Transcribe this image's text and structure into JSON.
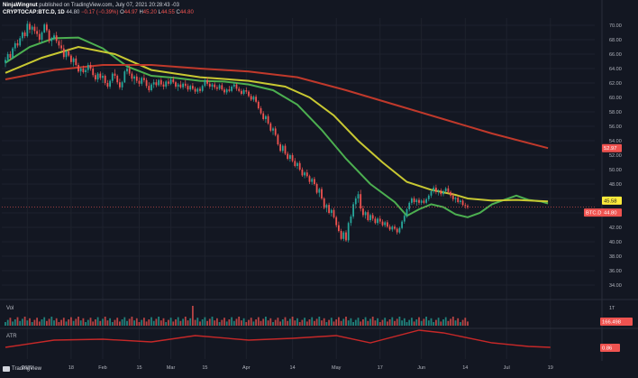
{
  "header": {
    "publisher_name": "NinjaWingnut",
    "publisher_suffix": "published on TradingView.com, July 07, 2021 20:28:43 -03",
    "symbol": "CRYPTOCAP:BTC.D, 1D",
    "last": "44.80",
    "change": "−0.17 (−0.39%)",
    "ohlc": {
      "o_label": "O",
      "o": "44.97",
      "h_label": "H",
      "h": "45.20",
      "l_label": "L",
      "l": "44.55",
      "c_label": "C",
      "c": "44.80"
    }
  },
  "footer": {
    "brand": "TradingView"
  },
  "colors": {
    "background": "#131722",
    "grid": "#1e222d",
    "up": "#26a69a",
    "down": "#ef5350",
    "ma_fast": "#4caf50",
    "ma_mid": "#c8c832",
    "ma_slow": "#c0392b",
    "atr": "#c62828",
    "price_line": "#ef5350"
  },
  "chart_data": {
    "type": "candlestick",
    "y_ticks": [
      "70.00",
      "68.00",
      "66.00",
      "64.00",
      "62.00",
      "60.00",
      "58.00",
      "56.00",
      "54.00",
      "52.00",
      "50.00",
      "48.00",
      "46.00",
      "44.00",
      "42.00",
      "40.00",
      "38.00",
      "36.00",
      "34.00"
    ],
    "x_ticks": [
      "2021",
      "18",
      "Feb",
      "15",
      "Mar",
      "15",
      "Apr",
      "14",
      "May",
      "17",
      "Jun",
      "14",
      "Jul",
      "19"
    ],
    "price_labels": [
      {
        "label": "52.97",
        "value": 52.97,
        "color": "#ef5350"
      },
      {
        "label": "45.58",
        "value": 45.58,
        "color": "#ffeb3b"
      },
      {
        "label": "BTC.D",
        "value": 44.8,
        "color": "#ef5350"
      },
      {
        "label": "44.80",
        "value": 44.8,
        "color": "#ef5350"
      }
    ],
    "last_price": 44.8,
    "ylim": [
      32.5,
      71
    ],
    "moving_averages": [
      {
        "period": 20,
        "color": "#4caf50",
        "points": [
          [
            0,
            64.8
          ],
          [
            10,
            67
          ],
          [
            20,
            68.2
          ],
          [
            30,
            68.3
          ],
          [
            40,
            66.8
          ],
          [
            50,
            64.3
          ],
          [
            60,
            63
          ],
          [
            70,
            62.7
          ],
          [
            80,
            62.3
          ],
          [
            90,
            62.2
          ],
          [
            100,
            61.8
          ],
          [
            110,
            61
          ],
          [
            120,
            59
          ],
          [
            130,
            55.5
          ],
          [
            140,
            51.5
          ],
          [
            150,
            48
          ],
          [
            160,
            45.5
          ],
          [
            165,
            43.6
          ],
          [
            170,
            44.5
          ],
          [
            175,
            45.2
          ],
          [
            180,
            44.8
          ],
          [
            185,
            43.8
          ],
          [
            190,
            43.4
          ],
          [
            195,
            44
          ],
          [
            200,
            45.2
          ],
          [
            205,
            45.8
          ],
          [
            210,
            46.4
          ],
          [
            215,
            45.8
          ],
          [
            220,
            45.6
          ],
          [
            223,
            45.3
          ]
        ]
      },
      {
        "period": 50,
        "color": "#c8c832",
        "points": [
          [
            0,
            63.4
          ],
          [
            15,
            65.5
          ],
          [
            30,
            67
          ],
          [
            45,
            66
          ],
          [
            60,
            63.8
          ],
          [
            80,
            62.8
          ],
          [
            100,
            62.3
          ],
          [
            115,
            61.5
          ],
          [
            125,
            60
          ],
          [
            135,
            57.5
          ],
          [
            145,
            54
          ],
          [
            155,
            51
          ],
          [
            165,
            48.3
          ],
          [
            175,
            47.2
          ],
          [
            185,
            46.5
          ],
          [
            190,
            46
          ],
          [
            200,
            45.7
          ],
          [
            210,
            45.8
          ],
          [
            223,
            45.6
          ]
        ]
      },
      {
        "period": 200,
        "color": "#c0392b",
        "points": [
          [
            0,
            62.5
          ],
          [
            20,
            63.8
          ],
          [
            40,
            64.5
          ],
          [
            60,
            64.5
          ],
          [
            80,
            64
          ],
          [
            100,
            63.6
          ],
          [
            120,
            62.8
          ],
          [
            140,
            61
          ],
          [
            160,
            59
          ],
          [
            180,
            57
          ],
          [
            200,
            55
          ],
          [
            223,
            52.97
          ]
        ]
      }
    ],
    "candles": [
      [
        64.8,
        65.6,
        64.2,
        65.2
      ],
      [
        65.2,
        66.3,
        64.9,
        66
      ],
      [
        66,
        66.4,
        65.2,
        65.5
      ],
      [
        65.5,
        67,
        65.3,
        66.8
      ],
      [
        66.8,
        67.8,
        66.4,
        67.5
      ],
      [
        67.5,
        68,
        66.9,
        67.2
      ],
      [
        67.2,
        68.5,
        67,
        68.2
      ],
      [
        68.2,
        69.2,
        67.8,
        69
      ],
      [
        69,
        69.3,
        68.2,
        68.5
      ],
      [
        68.5,
        70.6,
        68.3,
        70.2
      ],
      [
        70.2,
        70.5,
        68.9,
        69.4
      ],
      [
        69.4,
        70,
        68.7,
        69.8
      ],
      [
        69.8,
        70.2,
        68.8,
        69.2
      ],
      [
        69.2,
        69.8,
        68.4,
        68.8
      ],
      [
        68.8,
        69.4,
        67.6,
        68
      ],
      [
        68,
        69.2,
        67.5,
        69
      ],
      [
        69,
        70.3,
        68.9,
        70.1
      ],
      [
        70.1,
        70.4,
        69,
        69.3
      ],
      [
        69.3,
        69.5,
        67.5,
        67.8
      ],
      [
        67.8,
        68.4,
        67.1,
        68.2
      ],
      [
        68.2,
        68.9,
        67.9,
        68.6
      ],
      [
        68.6,
        69.1,
        67.5,
        67.8
      ],
      [
        67.8,
        68,
        66.8,
        67.2
      ],
      [
        67.2,
        68,
        66.5,
        66.8
      ],
      [
        66.8,
        67.3,
        65.3,
        65.6
      ],
      [
        65.6,
        66.6,
        65.2,
        66.4
      ],
      [
        66.4,
        66.8,
        65.6,
        65.8
      ],
      [
        65.8,
        66,
        64.6,
        64.9
      ],
      [
        64.9,
        65.6,
        64.3,
        65.4
      ],
      [
        65.4,
        65.8,
        64.3,
        64.5
      ],
      [
        64.5,
        64.8,
        63.4,
        63.6
      ],
      [
        63.6,
        64.2,
        63,
        64
      ],
      [
        64,
        64.4,
        63.3,
        63.5
      ],
      [
        63.5,
        64.1,
        62.8,
        63.8
      ],
      [
        63.8,
        64.8,
        63.4,
        64.5
      ],
      [
        64.5,
        64.9,
        63.7,
        64
      ],
      [
        64,
        64.3,
        62.8,
        63.1
      ],
      [
        63.1,
        63.4,
        62.2,
        62.5
      ],
      [
        62.5,
        63.5,
        62.1,
        63.3
      ],
      [
        63.3,
        63.6,
        62.4,
        62.7
      ],
      [
        62.7,
        63.4,
        62,
        63
      ],
      [
        63,
        63.2,
        61.7,
        62
      ],
      [
        62,
        62.4,
        61.2,
        61.5
      ],
      [
        61.5,
        62.5,
        61.2,
        62.3
      ],
      [
        62.3,
        63.5,
        62,
        63.3
      ],
      [
        63.3,
        63.9,
        62.6,
        63
      ],
      [
        63,
        63.2,
        61.8,
        62.1
      ],
      [
        62.1,
        62.6,
        61.1,
        61.4
      ],
      [
        61.4,
        62.3,
        61,
        62.1
      ],
      [
        62.1,
        63.8,
        62,
        63.6
      ],
      [
        63.6,
        64.5,
        63.2,
        64
      ],
      [
        64,
        64.4,
        63,
        63.3
      ],
      [
        63.3,
        63.6,
        62.2,
        62.6
      ],
      [
        62.6,
        63.1,
        61.8,
        62.9
      ],
      [
        62.9,
        63.3,
        62,
        62.3
      ],
      [
        62.3,
        62.8,
        61.5,
        61.9
      ],
      [
        61.9,
        62.9,
        61.6,
        62.7
      ],
      [
        62.7,
        63.2,
        62.1,
        62.4
      ],
      [
        62.4,
        62.7,
        61.3,
        61.6
      ],
      [
        61.6,
        62.1,
        60.7,
        61
      ],
      [
        61,
        62,
        60.8,
        61.8
      ],
      [
        61.8,
        62.5,
        61.3,
        62.1
      ],
      [
        62.1,
        62.5,
        61.4,
        61.7
      ],
      [
        61.7,
        62.6,
        61.5,
        62.4
      ],
      [
        62.4,
        62.7,
        61.5,
        61.8
      ],
      [
        61.8,
        62.2,
        61.1,
        61.5
      ],
      [
        61.5,
        62.4,
        61.2,
        62.2
      ],
      [
        62.2,
        62.6,
        61.6,
        61.9
      ],
      [
        61.9,
        62.8,
        61.7,
        62.5
      ],
      [
        62.5,
        62.9,
        61.9,
        62.1
      ],
      [
        62.1,
        62.3,
        61.2,
        61.5
      ],
      [
        61.5,
        62,
        60.9,
        61.8
      ],
      [
        61.8,
        62.3,
        61.2,
        61.4
      ],
      [
        61.4,
        62.1,
        61.1,
        61.9
      ],
      [
        61.9,
        62.4,
        61.3,
        61.6
      ],
      [
        61.6,
        61.9,
        60.8,
        61.1
      ],
      [
        61.1,
        61.8,
        60.8,
        61.6
      ],
      [
        61.6,
        62,
        61,
        61.2
      ],
      [
        61.2,
        61.5,
        60.5,
        60.8
      ],
      [
        60.8,
        61.4,
        60.5,
        61.2
      ],
      [
        61.2,
        61.5,
        60.6,
        60.9
      ],
      [
        60.9,
        61.8,
        60.7,
        61.6
      ],
      [
        61.6,
        62.6,
        61.4,
        62.4
      ],
      [
        62.4,
        62.8,
        61.6,
        61.9
      ],
      [
        61.9,
        62.2,
        61.2,
        61.5
      ],
      [
        61.5,
        62,
        61,
        61.8
      ],
      [
        61.8,
        62.1,
        61.1,
        61.4
      ],
      [
        61.4,
        61.7,
        60.9,
        61.2
      ],
      [
        61.2,
        61.9,
        61,
        61.7
      ],
      [
        61.7,
        62,
        60.9,
        61.1
      ],
      [
        61.1,
        61.4,
        60.4,
        60.7
      ],
      [
        60.7,
        61.3,
        60.4,
        61.1
      ],
      [
        61.1,
        61.6,
        60.7,
        60.9
      ],
      [
        60.9,
        61.7,
        60.7,
        61.5
      ],
      [
        61.5,
        62.1,
        61.2,
        61.8
      ],
      [
        61.8,
        62,
        60.9,
        61.2
      ],
      [
        61.2,
        61.5,
        60.7,
        60.9
      ],
      [
        60.9,
        61.2,
        60.3,
        60.5
      ],
      [
        60.5,
        61.2,
        60.3,
        61
      ],
      [
        61,
        61.4,
        60.5,
        60.8
      ],
      [
        60.8,
        61,
        60,
        60.2
      ],
      [
        60.2,
        60.5,
        59.5,
        59.7
      ],
      [
        59.7,
        60.3,
        59.4,
        60.1
      ],
      [
        60.1,
        60.4,
        59.2,
        59.4
      ],
      [
        59.4,
        59.6,
        58.3,
        58.5
      ],
      [
        58.5,
        58.8,
        57.6,
        57.8
      ],
      [
        57.8,
        58.1,
        56.8,
        57
      ],
      [
        57,
        57.6,
        56.5,
        57.4
      ],
      [
        57.4,
        57.7,
        56.2,
        56.4
      ],
      [
        56.4,
        56.6,
        55.2,
        55.4
      ],
      [
        55.4,
        55.9,
        54.8,
        55.7
      ],
      [
        55.7,
        56,
        54.6,
        54.8
      ],
      [
        54.8,
        55,
        53.3,
        53.5
      ],
      [
        53.5,
        53.8,
        52.4,
        52.6
      ],
      [
        52.6,
        53.5,
        52.3,
        53.3
      ],
      [
        53.3,
        53.6,
        52,
        52.2
      ],
      [
        52.2,
        52.5,
        51.3,
        51.5
      ],
      [
        51.5,
        52.2,
        51.1,
        52
      ],
      [
        52,
        52.3,
        51,
        51.2
      ],
      [
        51.2,
        51.6,
        50.3,
        50.5
      ],
      [
        50.5,
        51.1,
        50.1,
        50.9
      ],
      [
        50.9,
        51.2,
        49.8,
        50
      ],
      [
        50,
        50.3,
        49,
        49.2
      ],
      [
        49.2,
        49.8,
        48.8,
        49.6
      ],
      [
        49.6,
        50,
        48.9,
        49.1
      ],
      [
        49.1,
        49.3,
        48,
        48.3
      ],
      [
        48.3,
        48.9,
        47.9,
        48.7
      ],
      [
        48.7,
        49,
        47.8,
        48
      ],
      [
        48,
        48.2,
        46.6,
        46.8
      ],
      [
        46.8,
        47.5,
        46.2,
        47.3
      ],
      [
        47.3,
        47.6,
        45.8,
        46
      ],
      [
        46,
        46.2,
        44.5,
        44.7
      ],
      [
        44.7,
        45.3,
        44.1,
        45.1
      ],
      [
        45.1,
        45.4,
        43.8,
        44
      ],
      [
        44,
        44.6,
        43.5,
        44.4
      ],
      [
        44.4,
        44.7,
        43.2,
        43.4
      ],
      [
        43.4,
        43.6,
        42,
        42.3
      ],
      [
        42.3,
        42.8,
        41.3,
        41.5
      ],
      [
        41.5,
        41.8,
        40.2,
        40.4
      ],
      [
        40.4,
        41.5,
        40.1,
        41.3
      ],
      [
        41.3,
        41.6,
        40,
        40.2
      ],
      [
        40.2,
        42.8,
        39.9,
        42.6
      ],
      [
        42.6,
        43.8,
        42.2,
        43.5
      ],
      [
        43.5,
        45.5,
        43.2,
        45.2
      ],
      [
        45.2,
        46.3,
        44.6,
        46
      ],
      [
        46,
        47,
        45.4,
        46.6
      ],
      [
        46.6,
        47.2,
        44.2,
        44.6
      ],
      [
        44.6,
        45,
        43.4,
        43.7
      ],
      [
        43.7,
        44.3,
        43.2,
        44.1
      ],
      [
        44.1,
        44.4,
        42.8,
        43
      ],
      [
        43,
        43.9,
        42.7,
        43.7
      ],
      [
        43.7,
        44,
        42.9,
        43.2
      ],
      [
        43.2,
        43.5,
        42.4,
        42.6
      ],
      [
        42.6,
        43.4,
        42.3,
        43.2
      ],
      [
        43.2,
        43.6,
        42.5,
        42.8
      ],
      [
        42.8,
        43.1,
        42.1,
        42.3
      ],
      [
        42.3,
        42.9,
        42,
        42.7
      ],
      [
        42.7,
        43,
        41.9,
        42.1
      ],
      [
        42.1,
        42.4,
        41.5,
        41.7
      ],
      [
        41.7,
        42.3,
        41.4,
        42.1
      ],
      [
        42.1,
        42.4,
        41.6,
        41.8
      ],
      [
        41.8,
        42,
        41,
        41.3
      ],
      [
        41.3,
        42.1,
        41.1,
        41.9
      ],
      [
        41.9,
        43,
        41.7,
        42.8
      ],
      [
        42.8,
        43.8,
        42.5,
        43.6
      ],
      [
        43.6,
        44.7,
        43.3,
        44.5
      ],
      [
        44.5,
        45.6,
        44.2,
        45.4
      ],
      [
        45.4,
        46.2,
        45.1,
        46
      ],
      [
        46,
        46.3,
        45.2,
        45.5
      ],
      [
        45.5,
        46,
        45,
        45.8
      ],
      [
        45.8,
        46.1,
        45.1,
        45.4
      ],
      [
        45.4,
        45.9,
        45.1,
        45.7
      ],
      [
        45.7,
        46,
        45.2,
        45.4
      ],
      [
        45.4,
        46.1,
        45.2,
        45.9
      ],
      [
        45.9,
        46.6,
        45.6,
        46.4
      ],
      [
        46.4,
        47.2,
        46.1,
        47
      ],
      [
        47,
        47.8,
        46.7,
        47.5
      ],
      [
        47.5,
        47.9,
        46.6,
        46.9
      ],
      [
        46.9,
        47.3,
        46.4,
        47.1
      ],
      [
        47.1,
        47.4,
        46.3,
        46.6
      ],
      [
        46.6,
        47.2,
        46.3,
        47
      ],
      [
        47,
        47.6,
        46.8,
        47.4
      ],
      [
        47.4,
        47.8,
        46.7,
        46.9
      ],
      [
        46.9,
        47.1,
        46.1,
        46.4
      ],
      [
        46.4,
        46.8,
        45.6,
        45.9
      ],
      [
        45.9,
        46.3,
        45.4,
        46.1
      ],
      [
        46.1,
        46.4,
        45.3,
        45.5
      ],
      [
        45.5,
        45.9,
        45.2,
        45.7
      ],
      [
        45.7,
        45.9,
        44.9,
        45.1
      ],
      [
        45.1,
        45.4,
        44.6,
        44.97
      ],
      [
        44.97,
        45.2,
        44.55,
        44.8
      ]
    ],
    "volume_panel": {
      "label": "Vol",
      "tick": "1T",
      "last_label": "166.498",
      "last_value": 166.498
    },
    "atr_panel": {
      "label": "ATR",
      "last_label": "0.86",
      "last_value": 0.86
    }
  }
}
